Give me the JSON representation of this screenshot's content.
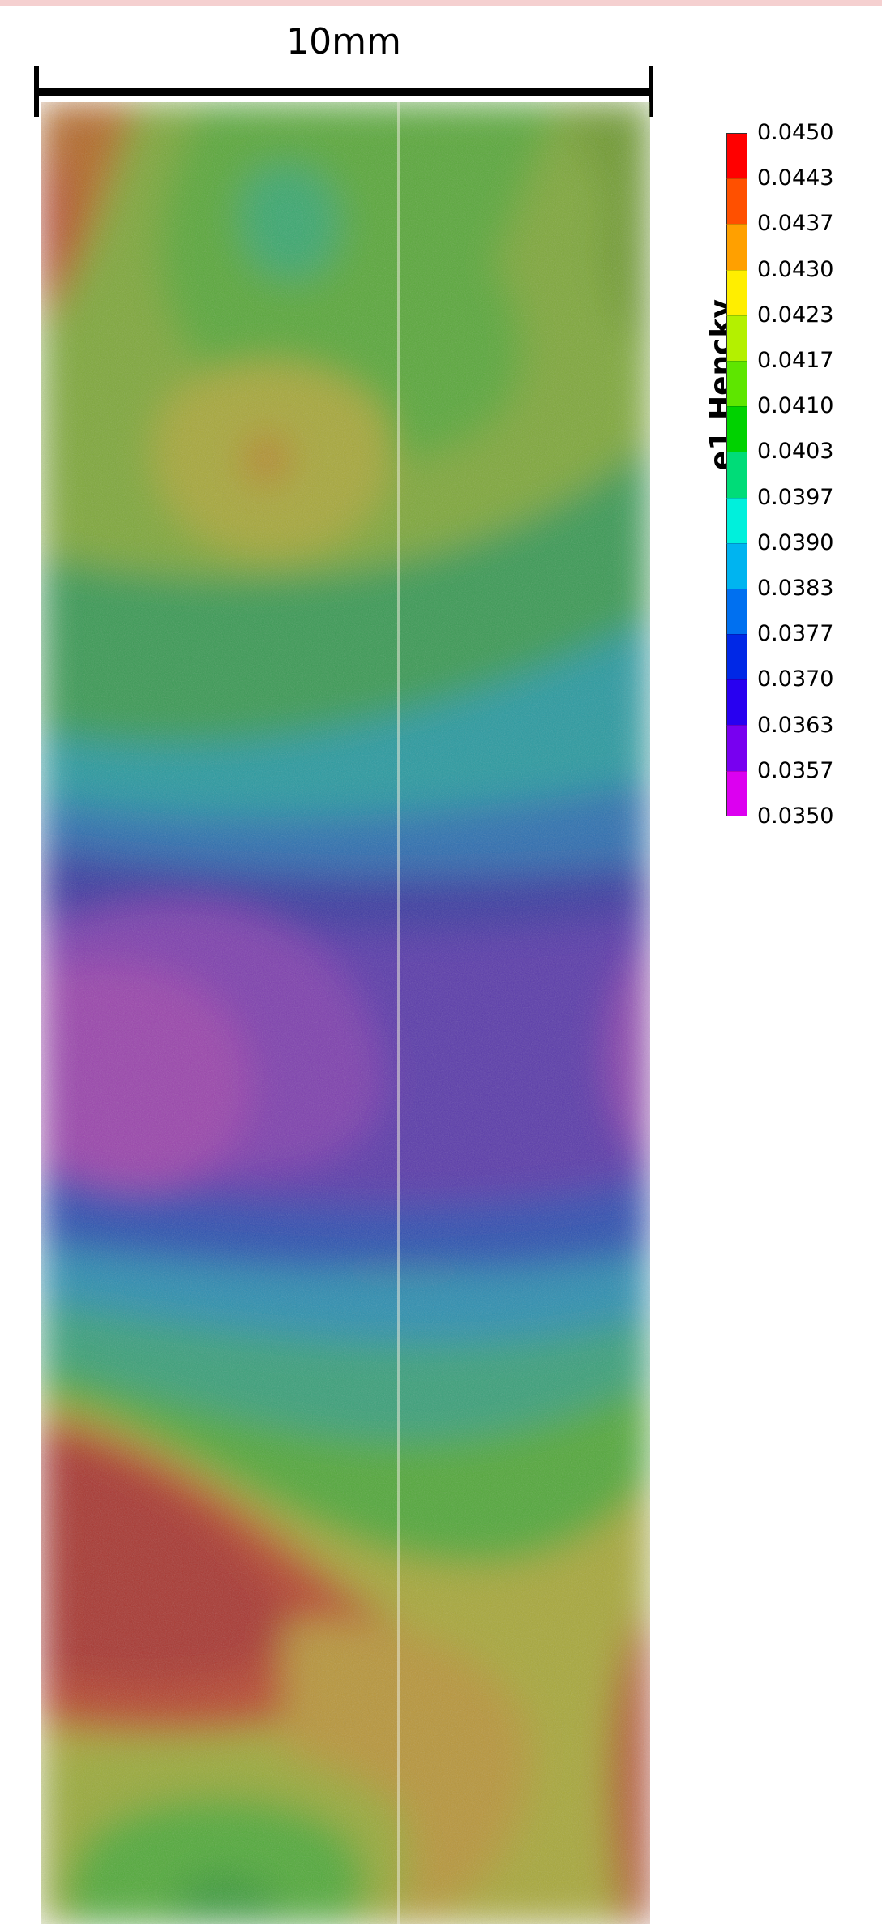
{
  "accent": {
    "top_strip": "#f5d0d0",
    "background": "#ffffff"
  },
  "scale_bar": {
    "label": "10mm"
  },
  "colorbar": {
    "title": "e1 Hencky",
    "min": 0.035,
    "max": 0.045,
    "tick_labels": [
      "0.0450",
      "0.0443",
      "0.0437",
      "0.0430",
      "0.0423",
      "0.0417",
      "0.0410",
      "0.0403",
      "0.0397",
      "0.0390",
      "0.0383",
      "0.0377",
      "0.0370",
      "0.0363",
      "0.0357",
      "0.0350"
    ],
    "colors": [
      "#ff0000",
      "#ff5000",
      "#ffa000",
      "#ffee00",
      "#b4f000",
      "#5ee600",
      "#00d200",
      "#00dc78",
      "#00f0dc",
      "#00b4f0",
      "#0070f0",
      "#0028e6",
      "#2800f0",
      "#7800f0",
      "#dc00f0"
    ]
  }
}
